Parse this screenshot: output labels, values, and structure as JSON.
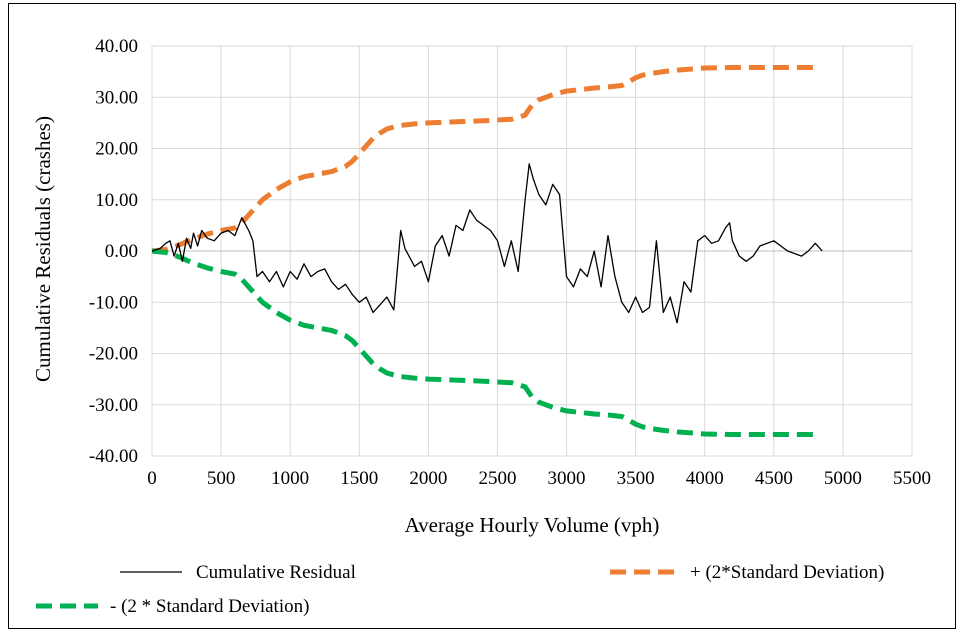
{
  "chart_data": {
    "type": "line",
    "title": "",
    "xlabel": "Average Hourly Volume (vph)",
    "ylabel": "Cumulative Residuals (crashes)",
    "xlim": [
      0,
      5500
    ],
    "ylim": [
      -40,
      40
    ],
    "x_ticks": [
      "0",
      "500",
      "1000",
      "1500",
      "2000",
      "2500",
      "3000",
      "3500",
      "4000",
      "4500",
      "5000",
      "5500"
    ],
    "y_ticks": [
      "40.00",
      "30.00",
      "20.00",
      "10.00",
      "0.00",
      "-10.00",
      "-20.00",
      "-30.00",
      "-40.00"
    ],
    "grid": true,
    "legend_position": "bottom",
    "series": [
      {
        "name": "Cumulative Residual",
        "color": "#000000",
        "style": "solid",
        "x": [
          0,
          60,
          100,
          130,
          160,
          190,
          220,
          250,
          280,
          300,
          330,
          360,
          400,
          450,
          500,
          550,
          600,
          650,
          680,
          700,
          730,
          760,
          800,
          850,
          900,
          950,
          1000,
          1050,
          1100,
          1150,
          1200,
          1250,
          1300,
          1350,
          1400,
          1450,
          1500,
          1550,
          1600,
          1650,
          1700,
          1750,
          1800,
          1830,
          1860,
          1900,
          1950,
          2000,
          2050,
          2100,
          2150,
          2200,
          2250,
          2300,
          2350,
          2400,
          2450,
          2500,
          2550,
          2600,
          2650,
          2700,
          2730,
          2760,
          2800,
          2850,
          2900,
          2950,
          3000,
          3050,
          3100,
          3150,
          3200,
          3250,
          3300,
          3350,
          3400,
          3450,
          3500,
          3550,
          3600,
          3650,
          3700,
          3750,
          3800,
          3850,
          3900,
          3950,
          4000,
          4050,
          4100,
          4150,
          4180,
          4200,
          4250,
          4300,
          4350,
          4400,
          4500,
          4600,
          4700,
          4750,
          4800,
          4850
        ],
        "y": [
          0,
          0.5,
          1.5,
          2.0,
          -1.0,
          1.5,
          -2.0,
          2.5,
          0.5,
          3.5,
          1.0,
          4.0,
          2.5,
          2.0,
          3.5,
          4.0,
          3.0,
          6.5,
          5.0,
          4.0,
          2.0,
          -5.0,
          -4.0,
          -6.0,
          -4.0,
          -7.0,
          -4.0,
          -5.5,
          -2.5,
          -5.0,
          -4.0,
          -3.5,
          -6.0,
          -7.5,
          -6.5,
          -8.5,
          -10.0,
          -9.0,
          -12.0,
          -10.5,
          -9.0,
          -11.5,
          4.0,
          0.5,
          -1.0,
          -3.0,
          -2.0,
          -6.0,
          1.0,
          3.0,
          -1.0,
          5.0,
          4.0,
          8.0,
          6.0,
          5.0,
          4.0,
          2.0,
          -3.0,
          2.0,
          -4.0,
          10.0,
          17.0,
          14.0,
          11.0,
          9.0,
          13.0,
          11.0,
          -5.0,
          -7.0,
          -3.5,
          -5.0,
          0.0,
          -7.0,
          3.0,
          -5.0,
          -10.0,
          -12.0,
          -9.0,
          -12.0,
          -11.0,
          2.0,
          -12.0,
          -9.0,
          -14.0,
          -6.0,
          -8.0,
          2.0,
          3.0,
          1.5,
          2.0,
          4.5,
          5.5,
          2.0,
          -1.0,
          -2.0,
          -1.0,
          1.0,
          2.0,
          0.0,
          -1.0,
          0.0,
          1.5,
          0.0
        ]
      },
      {
        "name": "+ (2*Standard Deviation)",
        "color": "#ED7D31",
        "style": "dashed",
        "x": [
          0,
          100,
          200,
          300,
          400,
          500,
          600,
          650,
          700,
          750,
          800,
          900,
          1000,
          1100,
          1200,
          1300,
          1400,
          1450,
          1500,
          1550,
          1600,
          1650,
          1700,
          1750,
          1800,
          1900,
          2000,
          2200,
          2400,
          2600,
          2700,
          2750,
          2800,
          2900,
          3000,
          3100,
          3200,
          3300,
          3400,
          3450,
          3500,
          3550,
          3600,
          3700,
          3800,
          3900,
          4000,
          4200,
          4400,
          4600,
          4800
        ],
        "y": [
          0,
          0.3,
          1.2,
          2.4,
          3.3,
          4.0,
          4.5,
          5.5,
          7.0,
          8.5,
          10.0,
          12.0,
          13.5,
          14.5,
          15.0,
          15.5,
          16.5,
          17.5,
          19.0,
          20.5,
          22.0,
          23.0,
          23.8,
          24.2,
          24.5,
          24.8,
          25.0,
          25.2,
          25.4,
          25.7,
          26.5,
          28.5,
          29.5,
          30.5,
          31.2,
          31.5,
          31.8,
          32.0,
          32.3,
          33.0,
          33.8,
          34.3,
          34.6,
          35.0,
          35.3,
          35.5,
          35.7,
          35.8,
          35.8,
          35.8,
          35.8
        ]
      },
      {
        "name": "- (2 * Standard Deviation)",
        "color": "#00B050",
        "style": "dashed",
        "x": [
          0,
          100,
          200,
          300,
          400,
          500,
          600,
          650,
          700,
          750,
          800,
          900,
          1000,
          1100,
          1200,
          1300,
          1400,
          1450,
          1500,
          1550,
          1600,
          1650,
          1700,
          1750,
          1800,
          1900,
          2000,
          2200,
          2400,
          2600,
          2700,
          2750,
          2800,
          2900,
          3000,
          3100,
          3200,
          3300,
          3400,
          3450,
          3500,
          3550,
          3600,
          3700,
          3800,
          3900,
          4000,
          4200,
          4400,
          4600,
          4800
        ],
        "y": [
          0,
          -0.3,
          -1.2,
          -2.4,
          -3.3,
          -4.0,
          -4.5,
          -5.5,
          -7.0,
          -8.5,
          -10.0,
          -12.0,
          -13.5,
          -14.5,
          -15.0,
          -15.5,
          -16.5,
          -17.5,
          -19.0,
          -20.5,
          -22.0,
          -23.0,
          -23.8,
          -24.2,
          -24.5,
          -24.8,
          -25.0,
          -25.2,
          -25.4,
          -25.7,
          -26.5,
          -28.5,
          -29.5,
          -30.5,
          -31.2,
          -31.5,
          -31.8,
          -32.0,
          -32.3,
          -33.0,
          -33.8,
          -34.3,
          -34.6,
          -35.0,
          -35.3,
          -35.5,
          -35.7,
          -35.8,
          -35.8,
          -35.8,
          -35.8
        ]
      }
    ]
  }
}
